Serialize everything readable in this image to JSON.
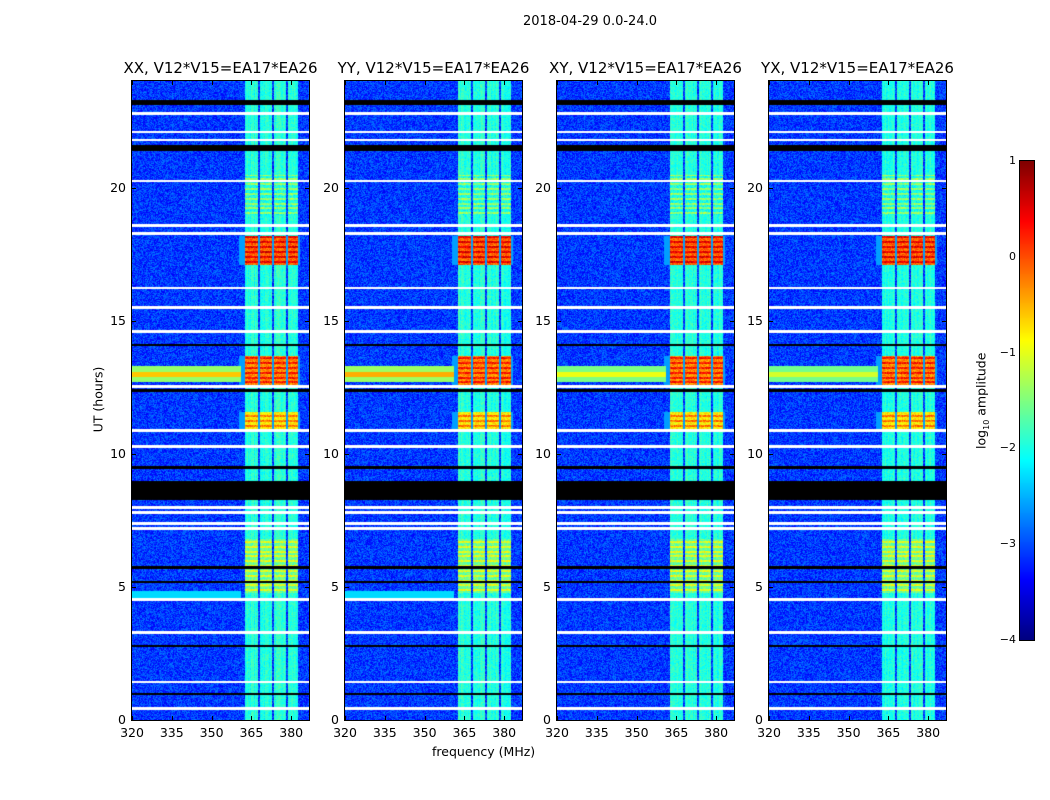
{
  "suptitle": "2018-04-29 0.0-24.0",
  "chart_data": {
    "type": "heatmap",
    "title": "2018-04-29 0.0-24.0",
    "xlabel": "frequency (MHz)",
    "ylabel": "UT (hours)",
    "xlim": [
      320,
      386.7
    ],
    "ylim": [
      0,
      24
    ],
    "xticks": [
      "320",
      "335",
      "350",
      "365",
      "380"
    ],
    "yticks": [
      "0",
      "5",
      "10",
      "15",
      "20"
    ],
    "panels": [
      {
        "title": "XX, V12*V15=EA17*EA26",
        "streak_strength": 1.0
      },
      {
        "title": "YY, V12*V15=EA17*EA26",
        "streak_strength": 1.1
      },
      {
        "title": "XY, V12*V15=EA17*EA26",
        "streak_strength": 0.7
      },
      {
        "title": "YX, V12*V15=EA17*EA26",
        "streak_strength": 0.6
      }
    ],
    "background_level_log10": -3.1,
    "subbands_mhz": [
      [
        362.3,
        367.2
      ],
      [
        367.9,
        372.5
      ],
      [
        373.2,
        377.7
      ],
      [
        378.5,
        382.3
      ]
    ],
    "events": [
      {
        "hours": [
          17.1,
          18.2
        ],
        "level_log10": 0.2
      },
      {
        "hours": [
          12.6,
          13.7
        ],
        "level_log10": 0.0
      },
      {
        "hours": [
          10.9,
          11.6
        ],
        "level_log10": -0.5
      },
      {
        "hours": [
          4.8,
          6.8
        ],
        "level_log10": -1.3
      },
      {
        "hours": [
          19.0,
          20.5
        ],
        "level_log10": -1.7
      }
    ],
    "flagged_white_hours": [
      22.8,
      22.1,
      21.8,
      20.26,
      18.6,
      18.3,
      16.25,
      15.5,
      14.6,
      12.55,
      10.9,
      10.3,
      8.0,
      7.8,
      7.4,
      7.2,
      4.55,
      3.3,
      1.45,
      0.45
    ],
    "flagged_black_hours": [
      [
        23.1,
        23.3
      ],
      [
        21.4,
        21.6
      ],
      [
        14.05,
        14.15
      ],
      [
        12.35,
        12.45
      ],
      [
        9.45,
        9.55
      ],
      [
        8.3,
        9.0
      ],
      [
        5.7,
        5.8
      ],
      [
        5.15,
        5.25
      ],
      [
        2.75,
        2.85
      ],
      [
        0.95,
        1.05
      ]
    ],
    "colorbar": {
      "label": "log10 amplitude",
      "label_main": "log",
      "label_sub": "10",
      "label_rest": " amplitude",
      "range": [
        -4,
        1
      ],
      "ticks": [
        "1",
        "0",
        "−1",
        "−2",
        "−3",
        "−4"
      ],
      "colormap": "jet"
    }
  }
}
